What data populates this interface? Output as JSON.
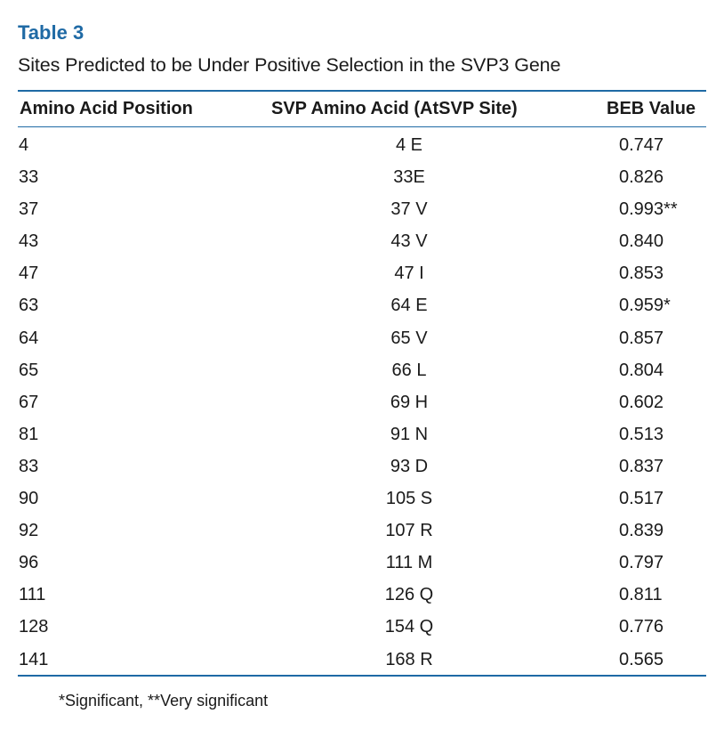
{
  "table": {
    "title": "Table 3",
    "caption": "Sites Predicted to be Under Positive Selection in the SVP3 Gene",
    "headers": {
      "position": "Amino Acid Position",
      "amino_acid": "SVP Amino Acid (AtSVP Site)",
      "beb": "BEB Value"
    },
    "rows": [
      {
        "position": "4",
        "amino_acid": "4 E",
        "beb": "0.747"
      },
      {
        "position": "33",
        "amino_acid": "33E",
        "beb": "0.826"
      },
      {
        "position": "37",
        "amino_acid": "37 V",
        "beb": "0.993**"
      },
      {
        "position": "43",
        "amino_acid": "43 V",
        "beb": "0.840"
      },
      {
        "position": "47",
        "amino_acid": "47 I",
        "beb": "0.853"
      },
      {
        "position": "63",
        "amino_acid": "64 E",
        "beb": "0.959*"
      },
      {
        "position": "64",
        "amino_acid": "65 V",
        "beb": "0.857"
      },
      {
        "position": "65",
        "amino_acid": "66 L",
        "beb": "0.804"
      },
      {
        "position": "67",
        "amino_acid": "69 H",
        "beb": "0.602"
      },
      {
        "position": "81",
        "amino_acid": "91 N",
        "beb": "0.513"
      },
      {
        "position": "83",
        "amino_acid": "93 D",
        "beb": "0.837"
      },
      {
        "position": "90",
        "amino_acid": "105 S",
        "beb": "0.517"
      },
      {
        "position": "92",
        "amino_acid": "107 R",
        "beb": "0.839"
      },
      {
        "position": "96",
        "amino_acid": "111 M",
        "beb": "0.797"
      },
      {
        "position": "111",
        "amino_acid": "126 Q",
        "beb": "0.811"
      },
      {
        "position": "128",
        "amino_acid": "154 Q",
        "beb": "0.776"
      },
      {
        "position": "141",
        "amino_acid": "168 R",
        "beb": "0.565"
      }
    ],
    "footnote": "*Significant, **Very significant"
  },
  "colors": {
    "accent": "#1f6aa5",
    "text": "#1a1a1a"
  }
}
